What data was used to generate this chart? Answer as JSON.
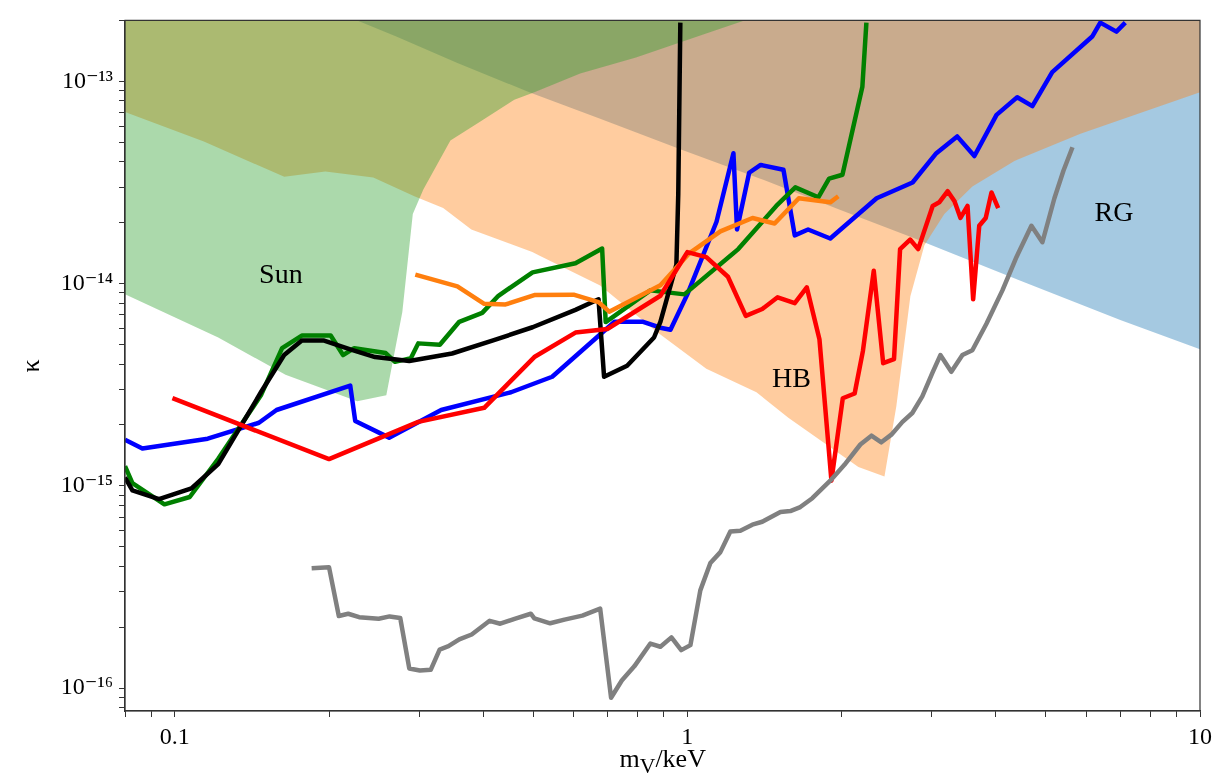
{
  "chart_data": {
    "type": "line",
    "xlabel": "m$_{V}$/keV",
    "ylabel": "κ",
    "log": "xy",
    "xlim": [
      0.08,
      10
    ],
    "ylim": [
      7.7e-17,
      2e-13
    ],
    "xticks": [
      {
        "value": 0.08,
        "label": null
      },
      {
        "value": 0.09,
        "label": null
      },
      0.1,
      {
        "value": 0.2,
        "label": null
      },
      {
        "value": 0.3,
        "label": null
      },
      {
        "value": 0.4,
        "label": null
      },
      {
        "value": 0.5,
        "label": null
      },
      {
        "value": 0.6,
        "label": null
      },
      {
        "value": 0.7,
        "label": null
      },
      {
        "value": 0.8,
        "label": null
      },
      {
        "value": 0.9,
        "label": null
      },
      1,
      {
        "value": 2,
        "label": null
      },
      {
        "value": 3,
        "label": null
      },
      {
        "value": 4,
        "label": null
      },
      {
        "value": 5,
        "label": null
      },
      {
        "value": 6,
        "label": null
      },
      {
        "value": 7,
        "label": null
      },
      {
        "value": 8,
        "label": null
      },
      {
        "value": 9,
        "label": null
      },
      10
    ],
    "yticks": [
      {
        "value": 8e-17,
        "label": null
      },
      {
        "value": 9e-17,
        "label": null
      },
      {
        "value": 1e-16,
        "label": "10⁻¹⁶"
      },
      {
        "value": 2e-16,
        "label": null
      },
      {
        "value": 3e-16,
        "label": null
      },
      {
        "value": 4e-16,
        "label": null
      },
      {
        "value": 5e-16,
        "label": null
      },
      {
        "value": 6e-16,
        "label": null
      },
      {
        "value": 7e-16,
        "label": null
      },
      {
        "value": 8e-16,
        "label": null
      },
      {
        "value": 9e-16,
        "label": null
      },
      {
        "value": 1e-15,
        "label": "10⁻¹⁵"
      },
      {
        "value": 2e-15,
        "label": null
      },
      {
        "value": 3e-15,
        "label": null
      },
      {
        "value": 4e-15,
        "label": null
      },
      {
        "value": 5e-15,
        "label": null
      },
      {
        "value": 6e-15,
        "label": null
      },
      {
        "value": 7e-15,
        "label": null
      },
      {
        "value": 8e-15,
        "label": null
      },
      {
        "value": 9e-15,
        "label": null
      },
      {
        "value": 1e-14,
        "label": "10⁻¹⁴"
      },
      {
        "value": 2e-14,
        "label": null
      },
      {
        "value": 3e-14,
        "label": null
      },
      {
        "value": 4e-14,
        "label": null
      },
      {
        "value": 5e-14,
        "label": null
      },
      {
        "value": 6e-14,
        "label": null
      },
      {
        "value": 7e-14,
        "label": null
      },
      {
        "value": 8e-14,
        "label": null
      },
      {
        "value": 9e-14,
        "label": null
      },
      {
        "value": 1e-13,
        "label": "10⁻¹³"
      },
      {
        "value": 2e-13,
        "label": null
      }
    ],
    "series": [
      {
        "type": "area",
        "name": "Sun",
        "color": "#2ca02c",
        "x": [
          0.08,
          0.08,
          0.1216,
          0.1645,
          0.227,
          0.2587,
          0.278,
          0.2914,
          0.3055,
          0.345,
          0.392,
          0.4597,
          0.503,
          0.618,
          0.794,
          1.06,
          1.292
        ],
        "values": [
          2e-13,
          8.84e-15,
          5.41e-15,
          3.54e-15,
          2.62e-15,
          2.8e-15,
          7.23e-15,
          2.21e-14,
          2.92e-14,
          5.1e-14,
          6.26e-14,
          8.11e-14,
          8.82e-14,
          1.094e-13,
          1.31e-13,
          1.684e-13,
          2e-13
        ]
      },
      {
        "type": "area",
        "name": "HB",
        "color": "#ff7f0e",
        "x": [
          0.08,
          0.08,
          0.114,
          0.1636,
          0.1967,
          0.244,
          0.2934,
          0.334,
          0.379,
          0.4984,
          0.676,
          0.87,
          1.089,
          1.364,
          1.574,
          2.156,
          2.424,
          2.557,
          2.723,
          2.9,
          3.172,
          3.597,
          4.345,
          5.845,
          10,
          10
        ],
        "values": [
          2e-13,
          7.05e-14,
          5.04e-14,
          3.37e-14,
          3.58e-14,
          3.34e-14,
          2.7e-14,
          2.36e-14,
          1.85e-14,
          1.43e-14,
          9.78e-15,
          5.79e-15,
          3.79e-15,
          2.9e-15,
          2.17e-15,
          1.24e-15,
          1.11e-15,
          2.48e-15,
          8.65e-15,
          1.545e-14,
          2.21e-14,
          3.02e-14,
          4.04e-14,
          5.51e-14,
          8.82e-14,
          2e-13
        ]
      },
      {
        "type": "area",
        "name": "RG",
        "color": "#1f77b4",
        "x": [
          0.227,
          0.2705,
          0.356,
          0.4917,
          0.676,
          0.969,
          1.388,
          1.989,
          2.747,
          4.08,
          6.99,
          10,
          10
        ],
        "values": [
          2e-13,
          1.665e-13,
          1.232e-13,
          8.82e-14,
          6.52e-14,
          4.61e-14,
          3.3e-14,
          2.31e-14,
          1.69e-14,
          1.13e-14,
          6.61e-15,
          4.73e-15,
          2e-13
        ]
      },
      {
        "color": "#0000ff",
        "x": [
          0.08,
          0.0865,
          0.116,
          0.146,
          0.158,
          0.22,
          0.225,
          0.262,
          0.331,
          0.453,
          0.545,
          0.721,
          0.82,
          0.886,
          0.927,
          1.0,
          1.14,
          1.23,
          1.25,
          1.32,
          1.39,
          1.54,
          1.62,
          1.72,
          1.9,
          2.34,
          2.75,
          3.06,
          3.36,
          3.63,
          4.01,
          4.4,
          4.71,
          5.15,
          6.17,
          6.39,
          6.87,
          7.15
        ],
        "values": [
          1.69e-15,
          1.53e-15,
          1.71e-15,
          2.05e-15,
          2.37e-15,
          3.13e-15,
          2.09e-15,
          1.73e-15,
          2.37e-15,
          2.9e-15,
          3.46e-15,
          6.47e-15,
          6.47e-15,
          6.05e-15,
          5.91e-15,
          8.84e-15,
          2.02e-14,
          4.41e-14,
          1.85e-14,
          3.53e-14,
          3.86e-14,
          3.65e-14,
          1.73e-14,
          1.85e-14,
          1.67e-14,
          2.64e-14,
          3.16e-14,
          4.41e-14,
          5.34e-14,
          4.27e-14,
          6.82e-14,
          8.34e-14,
          7.54e-14,
          1.11e-13,
          1.67e-13,
          1.95e-13,
          1.76e-13,
          1.95e-13
        ]
      },
      {
        "color": "#008000",
        "x": [
          0.08,
          0.0827,
          0.0955,
          0.107,
          0.1216,
          0.1473,
          0.162,
          0.177,
          0.2015,
          0.213,
          0.224,
          0.258,
          0.269,
          0.289,
          0.2986,
          0.329,
          0.359,
          0.398,
          0.428,
          0.499,
          0.605,
          0.682,
          0.693,
          0.847,
          0.987,
          1.257,
          1.491,
          1.624,
          1.801,
          1.89,
          2.007,
          2.195,
          2.235
        ],
        "values": [
          1.25e-15,
          1.03e-15,
          8.1e-16,
          8.8e-16,
          1.36e-15,
          2.8e-15,
          4.79e-15,
          5.53e-15,
          5.53e-15,
          4.43e-15,
          4.79e-15,
          4.53e-15,
          4.1e-15,
          4.28e-15,
          5.06e-15,
          4.98e-15,
          6.47e-15,
          7.16e-15,
          8.7e-15,
          1.135e-14,
          1.26e-14,
          1.49e-14,
          6.45e-15,
          9.25e-15,
          8.84e-15,
          1.48e-14,
          2.42e-14,
          2.99e-14,
          2.67e-14,
          3.3e-14,
          3.45e-14,
          9.4e-14,
          1.95e-13
        ]
      },
      {
        "color": "#000000",
        "x": [
          0.08,
          0.0827,
          0.0932,
          0.1078,
          0.1216,
          0.1473,
          0.1635,
          0.177,
          0.195,
          0.22,
          0.246,
          0.2868,
          0.3476,
          0.418,
          0.499,
          0.605,
          0.671,
          0.688,
          0.763,
          0.861,
          0.886,
          0.952,
          0.96,
          0.969
        ],
        "values": [
          1.1e-15,
          9.5e-16,
          8.6e-16,
          9.7e-16,
          1.28e-15,
          2.9e-15,
          4.43e-15,
          5.23e-15,
          5.23e-15,
          4.73e-15,
          4.33e-15,
          4.14e-15,
          4.51e-15,
          5.23e-15,
          6.08e-15,
          7.41e-15,
          8.36e-15,
          3.46e-15,
          3.92e-15,
          5.41e-15,
          6.47e-15,
          1.24e-14,
          2.76e-14,
          1.95e-13
        ]
      },
      {
        "color": "#ff7f0e",
        "x": [
          0.2947,
          0.356,
          0.4016,
          0.442,
          0.503,
          0.6,
          0.671,
          0.704,
          0.886,
          1.01,
          1.16,
          1.34,
          1.48,
          1.65,
          1.77,
          1.9,
          1.97
        ],
        "values": [
          1.106e-14,
          9.68e-15,
          7.94e-15,
          7.88e-15,
          8.77e-15,
          8.81e-15,
          8.09e-15,
          7.26e-15,
          9.8e-15,
          1.414e-14,
          1.81e-14,
          2.11e-14,
          1.98e-14,
          2.64e-14,
          2.58e-14,
          2.52e-14,
          2.7e-14
        ]
      },
      {
        "color": "#ff0000",
        "x": [
          0.099,
          0.2,
          0.2986,
          0.4016,
          0.503,
          0.605,
          0.698,
          0.886,
          1.0,
          1.089,
          1.2,
          1.3,
          1.4,
          1.5,
          1.62,
          1.71,
          1.81,
          1.91,
          2.01,
          2.12,
          2.2,
          2.31,
          2.41,
          2.53,
          2.6,
          2.72,
          2.82,
          3.01,
          3.1,
          3.22,
          3.32,
          3.41,
          3.52,
          3.61,
          3.71,
          3.82,
          3.92,
          4.04
        ],
        "values": [
          2.71e-15,
          1.355e-15,
          2.07e-15,
          2.43e-15,
          4.33e-15,
          5.72e-15,
          5.96e-15,
          8.7e-15,
          1.43e-14,
          1.35e-14,
          1.08e-14,
          6.92e-15,
          7.48e-15,
          8.55e-15,
          8e-15,
          9.57e-15,
          5.3e-15,
          1.06e-15,
          2.71e-15,
          2.86e-15,
          4.63e-15,
          1.156e-14,
          4.04e-15,
          4.23e-15,
          1.48e-14,
          1.65e-14,
          1.48e-14,
          2.42e-14,
          2.52e-14,
          2.86e-14,
          2.55e-14,
          2.11e-14,
          2.42e-14,
          8.36e-15,
          1.93e-14,
          2.11e-14,
          2.82e-14,
          2.36e-14
        ]
      },
      {
        "color": "#808080",
        "x": [
          0.185,
          0.2,
          0.209,
          0.218,
          0.229,
          0.25,
          0.2626,
          0.2754,
          0.2868,
          0.3008,
          0.3158,
          0.3287,
          0.342,
          0.359,
          0.3796,
          0.4115,
          0.4316,
          0.4603,
          0.495,
          0.503,
          0.54,
          0.576,
          0.624,
          0.676,
          0.71,
          0.745,
          0.788,
          0.847,
          0.886,
          0.931,
          0.973,
          1.014,
          1.06,
          1.109,
          1.16,
          1.213,
          1.269,
          1.339,
          1.4,
          1.519,
          1.588,
          1.661,
          1.753,
          1.9,
          2.025,
          2.175,
          2.286,
          2.39,
          2.5,
          2.628,
          2.747,
          2.873,
          3.006,
          3.116,
          3.273,
          3.44,
          3.597,
          3.832,
          4.117,
          4.384,
          4.69,
          4.927,
          5.2,
          5.415,
          5.64
        ],
        "values": [
          3.91e-16,
          3.96e-16,
          2.27e-16,
          2.33e-16,
          2.24e-16,
          2.2e-16,
          2.26e-16,
          2.22e-16,
          1.25e-16,
          1.22e-16,
          1.23e-16,
          1.55e-16,
          1.61e-16,
          1.74e-16,
          1.84e-16,
          2.15e-16,
          2.08e-16,
          2.2e-16,
          2.33e-16,
          2.21e-16,
          2.09e-16,
          2.18e-16,
          2.28e-16,
          2.47e-16,
          8.95e-17,
          1.09e-16,
          1.28e-16,
          1.66e-16,
          1.6e-16,
          1.78e-16,
          1.54e-16,
          1.63e-16,
          3.04e-16,
          4.15e-16,
          4.7e-16,
          5.94e-16,
          6e-16,
          6.42e-16,
          6.64e-16,
          7.42e-16,
          7.5e-16,
          7.85e-16,
          8.68e-16,
          1.06e-15,
          1.27e-15,
          1.6e-15,
          1.77e-15,
          1.64e-15,
          1.79e-15,
          2.07e-15,
          2.29e-15,
          2.77e-15,
          3.62e-15,
          4.43e-15,
          3.66e-15,
          4.43e-15,
          4.68e-15,
          6.33e-15,
          9.25e-15,
          1.35e-14,
          1.93e-14,
          1.6e-14,
          2.64e-14,
          3.61e-14,
          4.72e-14
        ]
      }
    ]
  }
}
